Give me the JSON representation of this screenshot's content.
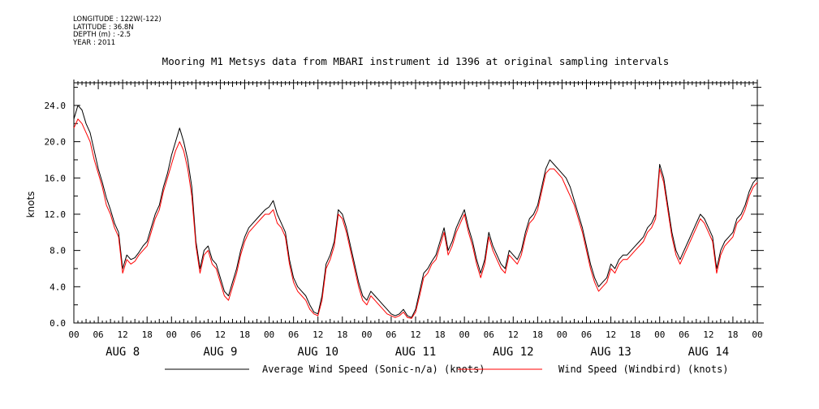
{
  "metadata": {
    "longitude": "LONGITUDE : 122W(-122)",
    "latitude": "LATITUDE : 36.8N",
    "depth": "DEPTH (m) : -2.5",
    "year": "YEAR : 2011"
  },
  "chart_data": {
    "type": "line",
    "title": "Mooring M1 Metsys data from MBARI instrument id 1396 at original sampling intervals",
    "ylabel": "knots",
    "xlabel": "",
    "ylim": [
      0,
      26.5
    ],
    "yticks": [
      "0.0",
      "4.0",
      "8.0",
      "12.0",
      "16.0",
      "20.0",
      "24.0"
    ],
    "x_unit": "hours since AUG 8 00:00",
    "xlim": [
      0,
      168
    ],
    "hour_tick_labels": [
      "00",
      "06",
      "12",
      "18"
    ],
    "day_labels": [
      "AUG 8",
      "AUG 9",
      "AUG 10",
      "AUG 11",
      "AUG 12",
      "AUG 13",
      "AUG 14"
    ],
    "grid": false,
    "legend_position": "bottom",
    "series": [
      {
        "name": "Average Wind Speed (Sonic-n/a) (knots)",
        "color": "#000000",
        "x": [
          0,
          1,
          2,
          3,
          4,
          5,
          6,
          7,
          8,
          9,
          10,
          11,
          12,
          13,
          14,
          15,
          16,
          17,
          18,
          19,
          20,
          21,
          22,
          23,
          24,
          25,
          26,
          27,
          28,
          29,
          30,
          31,
          32,
          33,
          34,
          35,
          36,
          37,
          38,
          39,
          40,
          41,
          42,
          43,
          44,
          45,
          46,
          47,
          48,
          49,
          50,
          51,
          52,
          53,
          54,
          55,
          56,
          57,
          58,
          59,
          60,
          61,
          62,
          63,
          64,
          65,
          66,
          67,
          68,
          69,
          70,
          71,
          72,
          73,
          74,
          75,
          76,
          77,
          78,
          79,
          80,
          81,
          82,
          83,
          84,
          85,
          86,
          87,
          88,
          89,
          90,
          91,
          92,
          93,
          94,
          95,
          96,
          97,
          98,
          99,
          100,
          101,
          102,
          103,
          104,
          105,
          106,
          107,
          108,
          109,
          110,
          111,
          112,
          113,
          114,
          115,
          116,
          117,
          118,
          119,
          120,
          121,
          122,
          123,
          124,
          125,
          126,
          127,
          128,
          129,
          130,
          131,
          132,
          133,
          134,
          135,
          136,
          137,
          138,
          139,
          140,
          141,
          142,
          143,
          144,
          145,
          146,
          147,
          148,
          149,
          150,
          151,
          152,
          153,
          154,
          155,
          156,
          157,
          158,
          159,
          160,
          161,
          162,
          163,
          164,
          165,
          166,
          167,
          168
        ],
        "y": [
          22.5,
          24.0,
          23.5,
          22.0,
          21.0,
          19.0,
          17.0,
          15.5,
          13.8,
          12.5,
          11.0,
          10.0,
          6.0,
          7.5,
          7.0,
          7.2,
          7.8,
          8.5,
          9.0,
          10.5,
          12.0,
          13.0,
          15.0,
          16.5,
          18.5,
          20.0,
          21.5,
          20.0,
          18.0,
          15.0,
          9.0,
          6.0,
          8.0,
          8.5,
          7.0,
          6.5,
          5.0,
          3.5,
          3.0,
          4.5,
          6.0,
          8.0,
          9.5,
          10.5,
          11.0,
          11.5,
          12.0,
          12.5,
          12.8,
          13.5,
          12.0,
          11.0,
          10.0,
          7.0,
          5.0,
          4.0,
          3.5,
          3.0,
          2.0,
          1.2,
          1.0,
          3.0,
          6.5,
          7.5,
          9.0,
          12.5,
          12.0,
          10.5,
          8.5,
          6.5,
          4.5,
          3.0,
          2.5,
          3.5,
          3.0,
          2.5,
          2.0,
          1.5,
          1.0,
          0.8,
          1.0,
          1.5,
          0.8,
          0.6,
          1.5,
          3.5,
          5.5,
          6.0,
          6.8,
          7.5,
          9.0,
          10.5,
          8.0,
          9.0,
          10.5,
          11.5,
          12.5,
          10.5,
          9.0,
          7.0,
          5.5,
          7.0,
          10.0,
          8.5,
          7.5,
          6.5,
          6.0,
          8.0,
          7.5,
          7.0,
          8.0,
          10.0,
          11.5,
          12.0,
          13.0,
          15.0,
          17.0,
          18.0,
          17.5,
          17.0,
          16.5,
          16.0,
          15.0,
          13.5,
          12.0,
          10.5,
          8.5,
          6.5,
          5.0,
          4.0,
          4.5,
          5.0,
          6.5,
          6.0,
          7.0,
          7.5,
          7.5,
          8.0,
          8.5,
          9.0,
          9.5,
          10.5,
          11.0,
          12.0,
          17.5,
          16.0,
          13.0,
          10.0,
          8.0,
          7.0,
          8.0,
          9.0,
          10.0,
          11.0,
          12.0,
          11.5,
          10.5,
          9.5,
          6.0,
          8.0,
          9.0,
          9.5,
          10.0,
          11.5,
          12.0,
          13.0,
          14.5,
          15.5,
          16.0
        ],
        "gaps_after_x": [
          96,
          100
        ]
      },
      {
        "name": "Wind Speed (Windbird) (knots)",
        "color": "#ff0000",
        "x": [
          0,
          1,
          2,
          3,
          4,
          5,
          6,
          7,
          8,
          9,
          10,
          11,
          12,
          13,
          14,
          15,
          16,
          17,
          18,
          19,
          20,
          21,
          22,
          23,
          24,
          25,
          26,
          27,
          28,
          29,
          30,
          31,
          32,
          33,
          34,
          35,
          36,
          37,
          38,
          39,
          40,
          41,
          42,
          43,
          44,
          45,
          46,
          47,
          48,
          49,
          50,
          51,
          52,
          53,
          54,
          55,
          56,
          57,
          58,
          59,
          60,
          61,
          62,
          63,
          64,
          65,
          66,
          67,
          68,
          69,
          70,
          71,
          72,
          73,
          74,
          75,
          76,
          77,
          78,
          79,
          80,
          81,
          82,
          83,
          84,
          85,
          86,
          87,
          88,
          89,
          90,
          91,
          92,
          93,
          94,
          95,
          96,
          97,
          98,
          99,
          100,
          101,
          102,
          103,
          104,
          105,
          106,
          107,
          108,
          109,
          110,
          111,
          112,
          113,
          114,
          115,
          116,
          117,
          118,
          119,
          120,
          121,
          122,
          123,
          124,
          125,
          126,
          127,
          128,
          129,
          130,
          131,
          132,
          133,
          134,
          135,
          136,
          137,
          138,
          139,
          140,
          141,
          142,
          143,
          144,
          145,
          146,
          147,
          148,
          149,
          150,
          151,
          152,
          153,
          154,
          155,
          156,
          157,
          158,
          159,
          160,
          161,
          162,
          163,
          164,
          165,
          166,
          167,
          168
        ],
        "y": [
          21.5,
          22.5,
          22.0,
          21.0,
          20.0,
          18.0,
          16.5,
          15.0,
          13.0,
          12.0,
          10.5,
          9.5,
          5.5,
          7.0,
          6.5,
          6.8,
          7.5,
          8.0,
          8.5,
          10.0,
          11.5,
          12.5,
          14.5,
          16.0,
          17.5,
          19.0,
          20.0,
          19.0,
          17.0,
          14.0,
          8.5,
          5.5,
          7.5,
          8.0,
          6.5,
          6.0,
          4.5,
          3.0,
          2.5,
          4.0,
          5.5,
          7.5,
          9.0,
          10.0,
          10.5,
          11.0,
          11.5,
          12.0,
          12.0,
          12.5,
          11.0,
          10.5,
          9.5,
          6.5,
          4.5,
          3.5,
          3.0,
          2.5,
          1.5,
          1.0,
          0.8,
          2.5,
          6.0,
          7.0,
          8.5,
          12.0,
          11.5,
          10.0,
          8.0,
          6.0,
          4.0,
          2.5,
          2.0,
          3.0,
          2.5,
          2.0,
          1.5,
          1.0,
          0.8,
          0.6,
          0.8,
          1.2,
          0.6,
          0.5,
          1.2,
          3.0,
          5.0,
          5.5,
          6.5,
          7.0,
          8.5,
          10.0,
          7.5,
          8.5,
          10.0,
          11.0,
          12.0,
          10.0,
          8.5,
          6.5,
          5.0,
          6.5,
          9.5,
          8.0,
          7.0,
          6.0,
          5.5,
          7.5,
          7.0,
          6.5,
          7.5,
          9.5,
          11.0,
          11.5,
          12.5,
          14.5,
          16.5,
          17.0,
          17.0,
          16.5,
          16.0,
          15.0,
          14.0,
          13.0,
          11.5,
          10.0,
          8.0,
          6.0,
          4.5,
          3.5,
          4.0,
          4.5,
          6.0,
          5.5,
          6.5,
          7.0,
          7.0,
          7.5,
          8.0,
          8.5,
          9.0,
          10.0,
          10.5,
          11.5,
          17.0,
          15.5,
          12.5,
          9.5,
          7.5,
          6.5,
          7.5,
          8.5,
          9.5,
          10.5,
          11.5,
          11.0,
          10.0,
          9.0,
          5.5,
          7.5,
          8.5,
          9.0,
          9.5,
          11.0,
          11.5,
          12.5,
          14.0,
          15.0,
          15.5
        ],
        "gaps_after_x": [
          96,
          100
        ]
      }
    ]
  }
}
